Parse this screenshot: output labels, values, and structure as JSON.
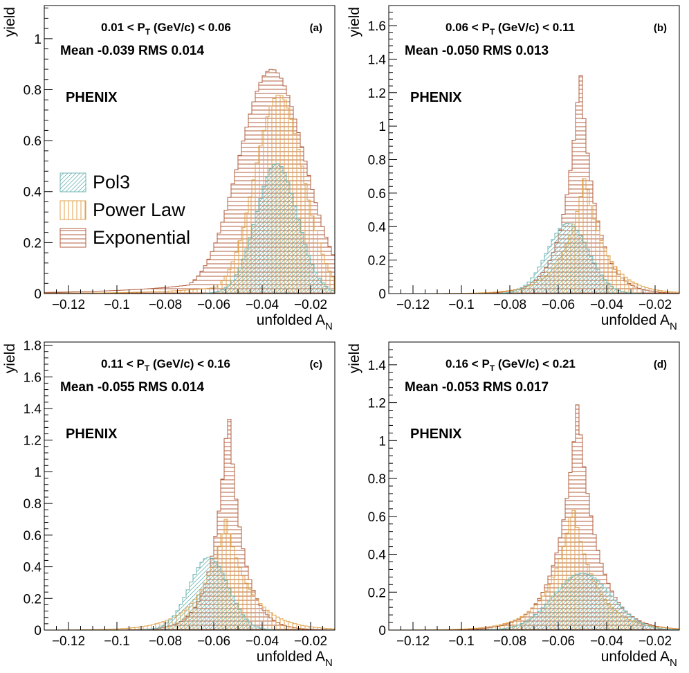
{
  "chart_data": [
    {
      "type": "histogram",
      "panel_label": "(a)",
      "pt_range": {
        "low": "0.01",
        "high": "0.06"
      },
      "pt_var": "P",
      "pt_sub": "T",
      "pt_unit": "(GeV/c)",
      "stats": "Mean -0.039 RMS 0.014",
      "experiment": "PHENIX",
      "xlabel": "unfolded A",
      "xlabel_sub": "N",
      "ylabel": "yield",
      "xlim": [
        -0.13,
        -0.01
      ],
      "ylim": [
        0,
        1.13
      ],
      "xticks": [
        -0.12,
        -0.1,
        -0.08,
        -0.06,
        -0.04,
        -0.02
      ],
      "xtick_labels": [
        "−0.12",
        "−0.1",
        "−0.08",
        "−0.06",
        "−0.04",
        "−0.02"
      ],
      "yticks": [
        0,
        0.2,
        0.4,
        0.6,
        0.8,
        1
      ],
      "ytick_labels": [
        "0",
        "0.2",
        "0.4",
        "0.6",
        "0.8",
        "1"
      ],
      "series": [
        {
          "name": "Exponential",
          "kind": "gauss",
          "mean": -0.036,
          "sigma": 0.0135,
          "peak": 0.88,
          "tail": 0.12,
          "color": "#b35e3c",
          "hatch": "horizontal"
        },
        {
          "name": "Power Law",
          "kind": "gauss",
          "mean": -0.033,
          "sigma": 0.01,
          "peak": 0.78,
          "tail": 0.1,
          "color": "#e0a24a",
          "hatch": "vertical"
        },
        {
          "name": "Pol3",
          "kind": "gauss",
          "mean": -0.034,
          "sigma": 0.0085,
          "peak": 0.51,
          "tail": 0.0,
          "color": "#6fb6b4",
          "hatch": "diagonal"
        }
      ],
      "legend": {
        "entries": [
          "Pol3",
          "Power Law",
          "Exponential"
        ],
        "placement": "middle-left"
      }
    },
    {
      "type": "histogram",
      "panel_label": "(b)",
      "pt_range": {
        "low": "0.06",
        "high": "0.11"
      },
      "pt_var": "P",
      "pt_sub": "T",
      "pt_unit": "(GeV/c)",
      "stats": "Mean -0.050 RMS 0.013",
      "experiment": "PHENIX",
      "xlabel": "unfolded A",
      "xlabel_sub": "N",
      "ylabel": "yield",
      "xlim": [
        -0.13,
        -0.01
      ],
      "ylim": [
        0,
        1.72
      ],
      "xticks": [
        -0.12,
        -0.1,
        -0.08,
        -0.06,
        -0.04,
        -0.02
      ],
      "xtick_labels": [
        "−0.12",
        "−0.1",
        "−0.08",
        "−0.06",
        "−0.04",
        "−0.02"
      ],
      "yticks": [
        0,
        0.2,
        0.4,
        0.6,
        0.8,
        1,
        1.2,
        1.4,
        1.6
      ],
      "ytick_labels": [
        "0",
        "0.2",
        "0.4",
        "0.6",
        "0.8",
        "1",
        "1.2",
        "1.4",
        "1.6"
      ],
      "series": [
        {
          "name": "Exponential",
          "kind": "laplace",
          "mean": -0.051,
          "width": 0.0065,
          "peak": 1.36,
          "color": "#b35e3c",
          "hatch": "horizontal"
        },
        {
          "name": "Power Law",
          "kind": "laplace",
          "mean": -0.049,
          "width": 0.0085,
          "peak": 0.71,
          "color": "#e0a24a",
          "hatch": "vertical"
        },
        {
          "name": "Pol3",
          "kind": "gauss",
          "mean": -0.056,
          "sigma": 0.0085,
          "peak": 0.42,
          "tail": 0.0,
          "color": "#6fb6b4",
          "hatch": "diagonal"
        }
      ]
    },
    {
      "type": "histogram",
      "panel_label": "(c)",
      "pt_range": {
        "low": "0.11",
        "high": "0.16"
      },
      "pt_var": "P",
      "pt_sub": "T",
      "pt_unit": "(GeV/c)",
      "stats": "Mean -0.055 RMS 0.014",
      "experiment": "PHENIX",
      "xlabel": "unfolded A",
      "xlabel_sub": "N",
      "ylabel": "yield",
      "xlim": [
        -0.13,
        -0.01
      ],
      "ylim": [
        0,
        1.82
      ],
      "xticks": [
        -0.12,
        -0.1,
        -0.08,
        -0.06,
        -0.04,
        -0.02
      ],
      "xtick_labels": [
        "−0.12",
        "−0.1",
        "−0.08",
        "−0.06",
        "−0.04",
        "−0.02"
      ],
      "yticks": [
        0,
        0.2,
        0.4,
        0.6,
        0.8,
        1,
        1.2,
        1.4,
        1.6,
        1.8
      ],
      "ytick_labels": [
        "0",
        "0.2",
        "0.4",
        "0.6",
        "0.8",
        "1",
        "1.2",
        "1.4",
        "1.6",
        "1.8"
      ],
      "series": [
        {
          "name": "Exponential",
          "kind": "laplace",
          "mean": -0.054,
          "width": 0.006,
          "peak": 1.43,
          "color": "#b35e3c",
          "hatch": "horizontal"
        },
        {
          "name": "Power Law",
          "kind": "laplace",
          "mean": -0.055,
          "width": 0.01,
          "peak": 0.7,
          "color": "#e0a24a",
          "hatch": "vertical"
        },
        {
          "name": "Pol3",
          "kind": "gauss",
          "mean": -0.062,
          "sigma": 0.008,
          "peak": 0.46,
          "tail": 0.0,
          "color": "#6fb6b4",
          "hatch": "diagonal"
        }
      ]
    },
    {
      "type": "histogram",
      "panel_label": "(d)",
      "pt_range": {
        "low": "0.16",
        "high": "0.21"
      },
      "pt_var": "P",
      "pt_sub": "T",
      "pt_unit": "(GeV/c)",
      "stats": "Mean -0.053 RMS 0.017",
      "experiment": "PHENIX",
      "xlabel": "unfolded A",
      "xlabel_sub": "N",
      "ylabel": "yield",
      "xlim": [
        -0.13,
        -0.01
      ],
      "ylim": [
        0,
        1.52
      ],
      "xticks": [
        -0.12,
        -0.1,
        -0.08,
        -0.06,
        -0.04,
        -0.02
      ],
      "xtick_labels": [
        "−0.12",
        "−0.1",
        "−0.08",
        "−0.06",
        "−0.04",
        "−0.02"
      ],
      "yticks": [
        0,
        0.2,
        0.4,
        0.6,
        0.8,
        1,
        1.2,
        1.4
      ],
      "ytick_labels": [
        "0",
        "0.2",
        "0.4",
        "0.6",
        "0.8",
        "1",
        "1.2",
        "1.4"
      ],
      "series": [
        {
          "name": "Exponential",
          "kind": "laplace",
          "mean": -0.052,
          "width": 0.008,
          "peak": 1.21,
          "color": "#b35e3c",
          "hatch": "horizontal"
        },
        {
          "name": "Power Law",
          "kind": "laplace",
          "mean": -0.054,
          "width": 0.0095,
          "peak": 0.66,
          "color": "#e0a24a",
          "hatch": "vertical"
        },
        {
          "name": "Pol3",
          "kind": "gauss",
          "mean": -0.05,
          "sigma": 0.012,
          "peak": 0.3,
          "tail": 0.0,
          "color": "#6fb6b4",
          "hatch": "diagonal"
        }
      ]
    }
  ]
}
